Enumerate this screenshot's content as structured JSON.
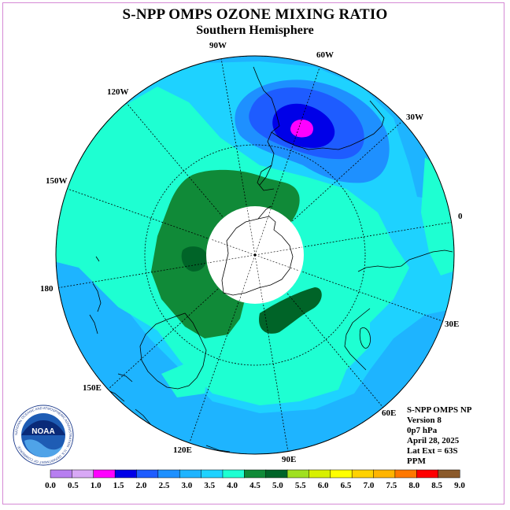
{
  "title": "S-NPP OMPS OZONE MIXING RATIO",
  "subtitle": "Southern Hemisphere",
  "longitude_labels": {
    "lon_90w": "90W",
    "lon_60w": "60W",
    "lon_30w": "30W",
    "lon_0": "0",
    "lon_30e": "30E",
    "lon_60e": "60E",
    "lon_90e": "90E",
    "lon_120e": "120E",
    "lon_150e": "150E",
    "lon_180": "180",
    "lon_150w": "150W",
    "lon_120w": "120W"
  },
  "info": {
    "line1": "S-NPP OMPS NP",
    "line2": "Version 8",
    "line3": "0p7 hPa",
    "line4": "April 28, 2025",
    "line5": "Lat Ext = 63S",
    "line6": "PPM"
  },
  "logo": {
    "text": "NOAA",
    "ring_text": "NATIONAL OCEANIC AND ATMOSPHERIC ADMINISTRATION · U.S. DEPARTMENT OF COMMERCE"
  },
  "colorbar": {
    "labels": [
      "0.0",
      "0.5",
      "1.0",
      "1.5",
      "2.0",
      "2.5",
      "3.0",
      "3.5",
      "4.0",
      "4.5",
      "5.0",
      "5.5",
      "6.0",
      "6.5",
      "7.0",
      "7.5",
      "8.0",
      "8.5",
      "9.0"
    ],
    "colors": [
      "#b77ef0",
      "#d8a8f5",
      "#ff00ff",
      "#0000e8",
      "#1e5cff",
      "#1e90ff",
      "#1eb4ff",
      "#1ed2ff",
      "#1effd2",
      "#108a38",
      "#006428",
      "#a0e020",
      "#d8f000",
      "#ffff00",
      "#ffd200",
      "#ffb400",
      "#ff7800",
      "#ff0000",
      "#8b5a2b"
    ]
  },
  "map_colors": {
    "background": "#1ed2ff",
    "band_3_0": "#1eb4ff",
    "band_3_5": "#1ed2ff",
    "band_4_0": "#1effd2",
    "band_4_5": "#108a38",
    "band_5_0": "#006428",
    "band_2_5": "#1e90ff",
    "band_2_0": "#1e5cff",
    "band_1_5": "#0000e8",
    "band_1_0": "#ff00ff",
    "polar_cap": "#ffffff"
  }
}
